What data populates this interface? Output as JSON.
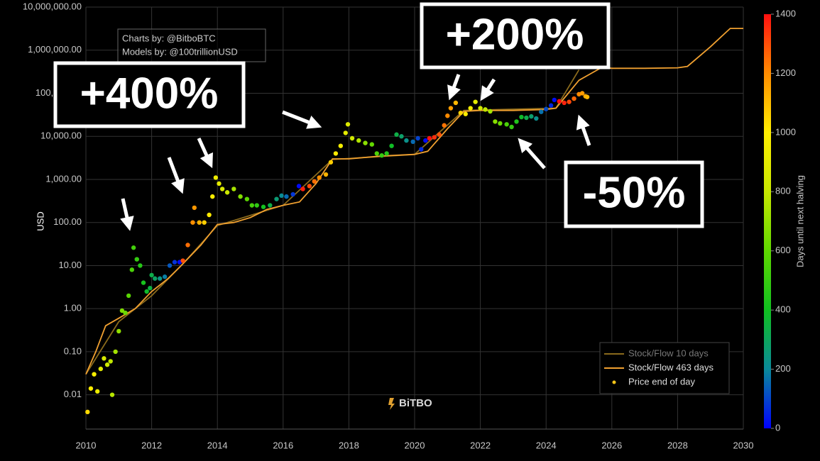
{
  "chart_data": {
    "type": "scatter",
    "y_label": "USD",
    "log_y": true,
    "grid": true,
    "legend": "bottom-right",
    "xlim": [
      2010,
      2030
    ],
    "xticks": [
      2010,
      2012,
      2014,
      2016,
      2018,
      2020,
      2022,
      2024,
      2026,
      2028,
      2030
    ],
    "ylim": [
      0.0016,
      10000000
    ],
    "yticks": [
      {
        "value": 0.01,
        "label": "0.01"
      },
      {
        "value": 0.1,
        "label": "0.10"
      },
      {
        "value": 1,
        "label": "1.00"
      },
      {
        "value": 10,
        "label": "10.00"
      },
      {
        "value": 100,
        "label": "100.00"
      },
      {
        "value": 1000,
        "label": "1,000.00"
      },
      {
        "value": 10000,
        "label": "10,000.00"
      },
      {
        "value": 100000,
        "label": "100,000.00"
      },
      {
        "value": 1000000,
        "label": "1,000,000.00"
      },
      {
        "value": 10000000,
        "label": "10,000,000.00"
      }
    ],
    "colorbar": {
      "title": "Days until next halving",
      "clim": [
        0,
        1400
      ],
      "ticks": [
        0,
        200,
        400,
        600,
        800,
        1000,
        1200,
        1400
      ],
      "colors": [
        "#0000ff",
        "#0a8a9a",
        "#10c020",
        "#5fd800",
        "#c8e800",
        "#ffee00",
        "#ff8c00",
        "#ff1010"
      ]
    },
    "credits": [
      "Charts by: @BitboBTC",
      "Models by: @100trillionUSD"
    ],
    "callouts": [
      "+400%",
      "+200%",
      "-50%"
    ],
    "logo": "BiTBO",
    "series": [
      {
        "name": "Stock/Flow 10 days",
        "type": "line",
        "color": "#8a6a1c",
        "x": [
          2010,
          2011,
          2012,
          2013,
          2014,
          2016,
          2017.5,
          2020,
          2021.5,
          2024.3,
          2025
        ],
        "values": [
          0.03,
          0.5,
          2,
          12,
          85,
          250,
          2900,
          3800,
          40000,
          45000,
          350000
        ]
      },
      {
        "name": "Stock/Flow 463 days",
        "type": "line",
        "color": "#f0a030",
        "x": [
          2010,
          2010.3,
          2010.6,
          2011,
          2011.5,
          2012,
          2012.5,
          2012.9,
          2013.5,
          2014,
          2014.5,
          2015,
          2015.5,
          2016,
          2016.5,
          2017,
          2017.5,
          2018,
          2019,
          2020,
          2020.4,
          2021,
          2021.5,
          2022,
          2023,
          2024,
          2024.3,
          2025,
          2025.7,
          2026,
          2027,
          2028,
          2028.3,
          2029,
          2029.6,
          2030
        ],
        "values": [
          0.03,
          0.1,
          0.4,
          0.6,
          1.0,
          2.5,
          5,
          10,
          30,
          90,
          100,
          130,
          200,
          250,
          300,
          800,
          3000,
          3000,
          3500,
          3800,
          4500,
          15000,
          38000,
          40000,
          40000,
          42000,
          45000,
          200000,
          400000,
          380000,
          380000,
          390000,
          420000,
          1200000,
          3200000,
          3200000
        ]
      },
      {
        "name": "Price end of day",
        "type": "scatter",
        "color": "#f5c518",
        "x": [
          2010.05,
          2010.15,
          2010.25,
          2010.35,
          2010.45,
          2010.55,
          2010.65,
          2010.75,
          2010.8,
          2010.9,
          2011.0,
          2011.1,
          2011.2,
          2011.3,
          2011.4,
          2011.45,
          2011.55,
          2011.65,
          2011.75,
          2011.85,
          2011.95,
          2012.0,
          2012.1,
          2012.25,
          2012.4,
          2012.55,
          2012.7,
          2012.85,
          2012.95,
          2013.1,
          2013.25,
          2013.3,
          2013.45,
          2013.6,
          2013.75,
          2013.85,
          2013.95,
          2014.05,
          2014.15,
          2014.3,
          2014.5,
          2014.7,
          2014.9,
          2015.05,
          2015.2,
          2015.4,
          2015.6,
          2015.8,
          2015.95,
          2016.1,
          2016.3,
          2016.48,
          2016.6,
          2016.8,
          2016.95,
          2017.1,
          2017.3,
          2017.45,
          2017.6,
          2017.75,
          2017.9,
          2017.97,
          2018.1,
          2018.3,
          2018.5,
          2018.7,
          2018.85,
          2019.0,
          2019.15,
          2019.3,
          2019.45,
          2019.6,
          2019.75,
          2019.95,
          2020.1,
          2020.2,
          2020.33,
          2020.45,
          2020.6,
          2020.75,
          2020.9,
          2021.0,
          2021.1,
          2021.25,
          2021.4,
          2021.55,
          2021.7,
          2021.85,
          2022.0,
          2022.15,
          2022.3,
          2022.45,
          2022.6,
          2022.8,
          2022.95,
          2023.1,
          2023.25,
          2023.4,
          2023.55,
          2023.7,
          2023.85,
          2024.0,
          2024.15,
          2024.25,
          2024.4,
          2024.55,
          2024.7,
          2024.85,
          2025.0,
          2025.1,
          2025.2,
          2025.25
        ],
        "values": [
          0.004,
          0.014,
          0.03,
          0.012,
          0.04,
          0.07,
          0.05,
          0.06,
          0.01,
          0.1,
          0.3,
          0.9,
          0.8,
          2,
          8,
          26,
          14,
          10,
          4,
          2.5,
          3,
          6,
          5,
          5,
          5.5,
          10,
          12,
          12,
          13,
          30,
          100,
          220,
          100,
          100,
          150,
          400,
          1100,
          800,
          600,
          500,
          600,
          400,
          350,
          250,
          250,
          230,
          250,
          350,
          420,
          400,
          450,
          700,
          600,
          700,
          900,
          1100,
          1300,
          2500,
          4000,
          6000,
          12000,
          19000,
          9000,
          8000,
          7000,
          6500,
          4000,
          3600,
          4000,
          6000,
          11000,
          10000,
          8000,
          7500,
          9000,
          5000,
          8000,
          9000,
          9500,
          11000,
          18000,
          30000,
          45000,
          60000,
          35000,
          33000,
          45000,
          63000,
          45000,
          42000,
          38000,
          22000,
          20000,
          19000,
          16500,
          22000,
          28000,
          27000,
          29000,
          26000,
          37000,
          43000,
          52000,
          70000,
          65000,
          60000,
          63000,
          75000,
          95000,
          100000,
          85000,
          82000
        ],
        "color_values": [
          1040,
          1004,
          967,
          931,
          894,
          858,
          821,
          785,
          767,
          730,
          694,
          657,
          621,
          584,
          548,
          529,
          493,
          456,
          420,
          383,
          347,
          329,
          292,
          237,
          183,
          128,
          73,
          18,
          1303,
          1248,
          1193,
          1175,
          1120,
          1066,
          1011,
          974,
          938,
          902,
          865,
          810,
          737,
          664,
          591,
          536,
          482,
          409,
          336,
          263,
          208,
          153,
          80,
          15,
          1376,
          1303,
          1249,
          1194,
          1121,
          1066,
          1011,
          957,
          902,
          876,
          829,
          756,
          683,
          610,
          555,
          500,
          445,
          391,
          336,
          281,
          226,
          153,
          99,
          62,
          15,
          1405,
          1350,
          1296,
          1241,
          1204,
          1168,
          1113,
          1058,
          1004,
          949,
          894,
          840,
          785,
          730,
          676,
          621,
          548,
          493,
          438,
          383,
          329,
          274,
          219,
          164,
          110,
          55,
          18,
          1424,
          1369,
          1314,
          1259,
          1205,
          1168,
          1132,
          1114
        ]
      }
    ]
  }
}
